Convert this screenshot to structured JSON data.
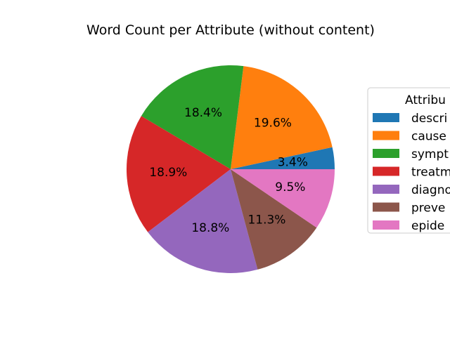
{
  "chart_data": {
    "type": "pie",
    "title": "Word Count per Attribute (without content)",
    "legend": {
      "title": "Attribu",
      "placement": "right"
    },
    "slices": [
      {
        "label": "descri",
        "value": 3.4,
        "pct_label": "3.4%",
        "color": "#1f77b4"
      },
      {
        "label": "cause",
        "value": 19.6,
        "pct_label": "19.6%",
        "color": "#ff7f0e"
      },
      {
        "label": "sympt",
        "value": 18.4,
        "pct_label": "18.4%",
        "color": "#2ca02c"
      },
      {
        "label": "treatm",
        "value": 18.9,
        "pct_label": "18.9%",
        "color": "#d62728"
      },
      {
        "label": "diagno",
        "value": 18.8,
        "pct_label": "18.8%",
        "color": "#9467bd"
      },
      {
        "label": "preve",
        "value": 11.3,
        "pct_label": "11.3%",
        "color": "#8c564b"
      },
      {
        "label": "epide",
        "value": 9.5,
        "pct_label": "9.5%",
        "color": "#e377c2"
      }
    ]
  }
}
